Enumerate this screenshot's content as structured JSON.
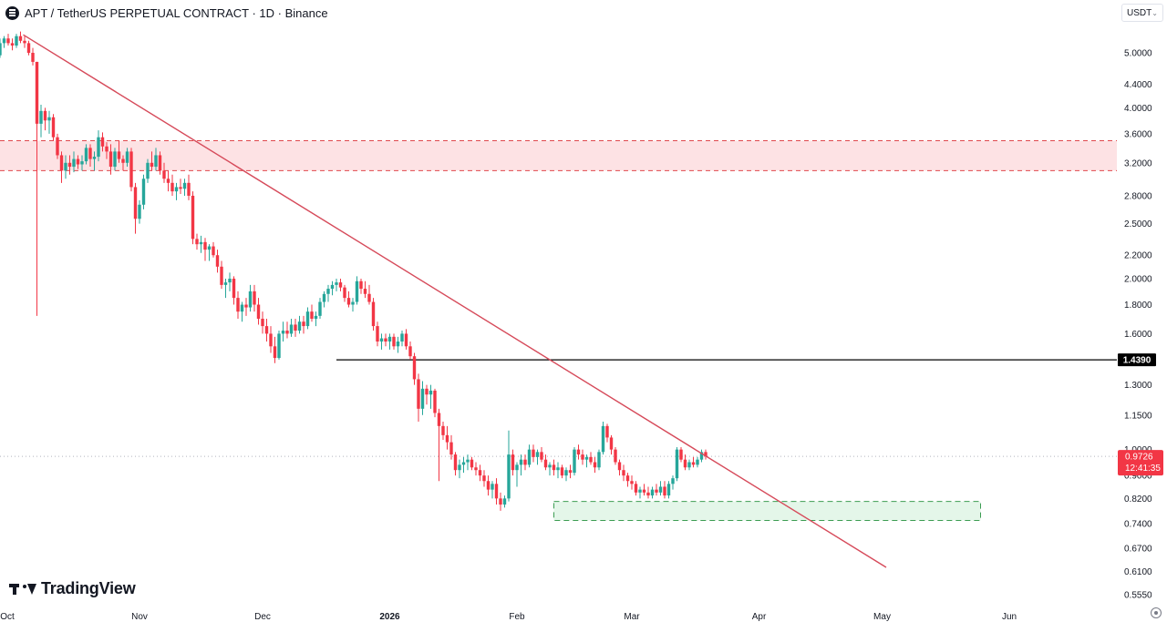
{
  "header": {
    "symbol_title": "APT / TetherUS PERPETUAL CONTRACT · 1D · Binance"
  },
  "currency_selector": {
    "value": "USDT",
    "icon": "chevron-down-icon"
  },
  "branding": {
    "logo_text": "TradingView"
  },
  "colors": {
    "up": "#26a69a",
    "down": "#ef5350",
    "down_candle": "#f23645",
    "trendline": "#d64a5a",
    "resistance_zone_fill": "#fde2e4",
    "resistance_zone_border": "#e0474c",
    "support_zone_fill": "#e4f6e9",
    "support_zone_border": "#3c9c52",
    "price_tag_bg": "#f23645",
    "level_line": "#000000"
  },
  "chart_data": {
    "type": "candlestick",
    "title": "APT / TetherUS PERPETUAL CONTRACT · 1D · Binance",
    "scale": "log",
    "ylim": [
      0.54,
      5.8
    ],
    "x_axis_ticks": [
      "Oct",
      "Nov",
      "Dec",
      "2026",
      "Feb",
      "Mar",
      "Apr",
      "May",
      "Jun"
    ],
    "x_axis_ticks_bold": [
      "2026"
    ],
    "y_axis_ticks": [
      "5.0000",
      "4.4000",
      "4.0000",
      "3.6000",
      "3.2000",
      "2.8000",
      "2.5000",
      "2.2000",
      "2.0000",
      "1.8000",
      "1.6000",
      "1.3000",
      "1.1500",
      "1.0000",
      "0.9000",
      "0.8200",
      "0.7400",
      "0.6700",
      "0.6100",
      "0.5550"
    ],
    "current_price": {
      "label": "0.9726",
      "countdown": "12:41:35"
    },
    "horizontal_level": {
      "label": "1.4390",
      "value": 1.439,
      "from_date": "2025-12-19"
    },
    "resistance_zone": {
      "top": 3.5,
      "bottom": 3.1
    },
    "support_zone": {
      "top": 0.81,
      "bottom": 0.75,
      "from_date": "2026-02-10",
      "to_date": "2026-05-25"
    },
    "trendline": {
      "start": {
        "date": "2025-10-01",
        "price": 5.38
      },
      "end": {
        "date": "2026-05-02",
        "price": 0.62
      }
    },
    "grid": false,
    "candles": {
      "start_date": "2025-09-25",
      "interval": "1D",
      "ohlc": [
        [
          4.25,
          4.38,
          4.2,
          4.3
        ],
        [
          4.3,
          4.78,
          4.25,
          4.7
        ],
        [
          4.7,
          5.0,
          4.6,
          4.95
        ],
        [
          4.95,
          5.3,
          4.9,
          5.2
        ],
        [
          5.2,
          5.35,
          5.1,
          5.3
        ],
        [
          5.3,
          5.4,
          5.15,
          5.2
        ],
        [
          5.2,
          5.3,
          5.05,
          5.15
        ],
        [
          5.15,
          5.4,
          5.1,
          5.35
        ],
        [
          5.35,
          5.45,
          5.2,
          5.25
        ],
        [
          5.25,
          5.35,
          5.1,
          5.2
        ],
        [
          5.2,
          5.25,
          4.95,
          5.0
        ],
        [
          5.0,
          5.1,
          4.75,
          4.82
        ],
        [
          4.82,
          4.82,
          1.72,
          3.75
        ],
        [
          3.75,
          4.05,
          3.55,
          3.95
        ],
        [
          3.95,
          4.0,
          3.65,
          3.8
        ],
        [
          3.8,
          3.95,
          3.6,
          3.85
        ],
        [
          3.85,
          3.9,
          3.5,
          3.55
        ],
        [
          3.55,
          3.6,
          3.25,
          3.3
        ],
        [
          3.3,
          3.35,
          2.95,
          3.1
        ],
        [
          3.1,
          3.3,
          3.0,
          3.2
        ],
        [
          3.2,
          3.3,
          3.05,
          3.15
        ],
        [
          3.15,
          3.35,
          3.08,
          3.25
        ],
        [
          3.25,
          3.3,
          3.12,
          3.18
        ],
        [
          3.18,
          3.3,
          3.1,
          3.22
        ],
        [
          3.22,
          3.45,
          3.18,
          3.4
        ],
        [
          3.4,
          3.45,
          3.15,
          3.25
        ],
        [
          3.25,
          3.35,
          3.1,
          3.28
        ],
        [
          3.28,
          3.65,
          3.22,
          3.55
        ],
        [
          3.55,
          3.62,
          3.35,
          3.42
        ],
        [
          3.42,
          3.48,
          3.25,
          3.35
        ],
        [
          3.35,
          3.45,
          3.05,
          3.15
        ],
        [
          3.15,
          3.4,
          3.1,
          3.35
        ],
        [
          3.35,
          3.5,
          3.2,
          3.25
        ],
        [
          3.25,
          3.3,
          3.1,
          3.2
        ],
        [
          3.2,
          3.4,
          3.15,
          3.35
        ],
        [
          3.35,
          3.4,
          2.85,
          2.9
        ],
        [
          2.9,
          2.95,
          2.4,
          2.55
        ],
        [
          2.55,
          2.75,
          2.5,
          2.7
        ],
        [
          2.7,
          3.05,
          2.65,
          3.0
        ],
        [
          3.0,
          3.25,
          2.95,
          3.2
        ],
        [
          3.2,
          3.35,
          3.1,
          3.15
        ],
        [
          3.15,
          3.4,
          3.1,
          3.3
        ],
        [
          3.3,
          3.35,
          3.05,
          3.1
        ],
        [
          3.1,
          3.2,
          2.95,
          3.0
        ],
        [
          3.0,
          3.1,
          2.85,
          2.95
        ],
        [
          2.95,
          3.05,
          2.8,
          2.85
        ],
        [
          2.85,
          2.95,
          2.75,
          2.9
        ],
        [
          2.9,
          3.0,
          2.82,
          2.88
        ],
        [
          2.88,
          3.0,
          2.8,
          2.95
        ],
        [
          2.95,
          3.05,
          2.75,
          2.8
        ],
        [
          2.8,
          2.85,
          2.3,
          2.35
        ],
        [
          2.35,
          2.4,
          2.25,
          2.3
        ],
        [
          2.3,
          2.38,
          2.22,
          2.32
        ],
        [
          2.32,
          2.36,
          2.15,
          2.25
        ],
        [
          2.25,
          2.3,
          2.15,
          2.28
        ],
        [
          2.28,
          2.32,
          2.18,
          2.2
        ],
        [
          2.2,
          2.25,
          2.05,
          2.1
        ],
        [
          2.1,
          2.15,
          1.92,
          1.95
        ],
        [
          1.95,
          2.0,
          1.85,
          1.97
        ],
        [
          1.97,
          2.05,
          1.9,
          2.0
        ],
        [
          2.0,
          2.02,
          1.8,
          1.85
        ],
        [
          1.85,
          1.9,
          1.7,
          1.75
        ],
        [
          1.75,
          1.82,
          1.68,
          1.8
        ],
        [
          1.8,
          1.85,
          1.72,
          1.78
        ],
        [
          1.78,
          1.95,
          1.75,
          1.9
        ],
        [
          1.9,
          1.95,
          1.75,
          1.8
        ],
        [
          1.8,
          1.85,
          1.66,
          1.7
        ],
        [
          1.7,
          1.75,
          1.6,
          1.65
        ],
        [
          1.65,
          1.7,
          1.55,
          1.6
        ],
        [
          1.6,
          1.65,
          1.48,
          1.52
        ],
        [
          1.52,
          1.58,
          1.42,
          1.45
        ],
        [
          1.45,
          1.62,
          1.44,
          1.6
        ],
        [
          1.6,
          1.68,
          1.55,
          1.62
        ],
        [
          1.62,
          1.68,
          1.57,
          1.6
        ],
        [
          1.6,
          1.7,
          1.58,
          1.66
        ],
        [
          1.66,
          1.7,
          1.58,
          1.62
        ],
        [
          1.62,
          1.72,
          1.6,
          1.68
        ],
        [
          1.68,
          1.72,
          1.6,
          1.65
        ],
        [
          1.65,
          1.78,
          1.63,
          1.75
        ],
        [
          1.75,
          1.8,
          1.68,
          1.7
        ],
        [
          1.7,
          1.75,
          1.65,
          1.72
        ],
        [
          1.72,
          1.85,
          1.7,
          1.82
        ],
        [
          1.82,
          1.9,
          1.78,
          1.88
        ],
        [
          1.88,
          1.95,
          1.82,
          1.92
        ],
        [
          1.92,
          1.98,
          1.87,
          1.95
        ],
        [
          1.95,
          2.0,
          1.9,
          1.97
        ],
        [
          1.97,
          2.0,
          1.9,
          1.93
        ],
        [
          1.93,
          1.95,
          1.82,
          1.85
        ],
        [
          1.85,
          1.9,
          1.78,
          1.8
        ],
        [
          1.8,
          1.85,
          1.75,
          1.82
        ],
        [
          1.82,
          2.02,
          1.8,
          1.98
        ],
        [
          1.98,
          2.0,
          1.88,
          1.92
        ],
        [
          1.92,
          1.98,
          1.85,
          1.88
        ],
        [
          1.88,
          1.95,
          1.8,
          1.82
        ],
        [
          1.82,
          1.85,
          1.62,
          1.65
        ],
        [
          1.65,
          1.68,
          1.52,
          1.55
        ],
        [
          1.55,
          1.6,
          1.5,
          1.57
        ],
        [
          1.57,
          1.6,
          1.52,
          1.55
        ],
        [
          1.55,
          1.6,
          1.5,
          1.58
        ],
        [
          1.58,
          1.6,
          1.5,
          1.52
        ],
        [
          1.52,
          1.58,
          1.48,
          1.55
        ],
        [
          1.55,
          1.62,
          1.52,
          1.6
        ],
        [
          1.6,
          1.63,
          1.5,
          1.52
        ],
        [
          1.52,
          1.55,
          1.44,
          1.46
        ],
        [
          1.46,
          1.48,
          1.3,
          1.33
        ],
        [
          1.33,
          1.36,
          1.12,
          1.18
        ],
        [
          1.18,
          1.32,
          1.15,
          1.28
        ],
        [
          1.28,
          1.3,
          1.2,
          1.25
        ],
        [
          1.25,
          1.3,
          1.18,
          1.27
        ],
        [
          1.27,
          1.28,
          1.14,
          1.16
        ],
        [
          1.16,
          1.18,
          0.88,
          1.1
        ],
        [
          1.1,
          1.12,
          1.04,
          1.06
        ],
        [
          1.06,
          1.1,
          1.0,
          1.03
        ],
        [
          1.03,
          1.06,
          0.96,
          0.98
        ],
        [
          0.98,
          0.99,
          0.9,
          0.92
        ],
        [
          0.92,
          0.96,
          0.89,
          0.94
        ],
        [
          0.94,
          0.97,
          0.91,
          0.95
        ],
        [
          0.95,
          0.98,
          0.92,
          0.96
        ],
        [
          0.96,
          0.97,
          0.92,
          0.93
        ],
        [
          0.93,
          0.95,
          0.9,
          0.92
        ],
        [
          0.92,
          0.94,
          0.88,
          0.9
        ],
        [
          0.9,
          0.92,
          0.86,
          0.88
        ],
        [
          0.88,
          0.9,
          0.83,
          0.85
        ],
        [
          0.85,
          0.88,
          0.82,
          0.87
        ],
        [
          0.87,
          0.89,
          0.8,
          0.82
        ],
        [
          0.82,
          0.84,
          0.78,
          0.8
        ],
        [
          0.8,
          0.83,
          0.79,
          0.82
        ],
        [
          0.82,
          1.08,
          0.81,
          0.98
        ],
        [
          0.98,
          1.0,
          0.9,
          0.92
        ],
        [
          0.92,
          0.95,
          0.86,
          0.94
        ],
        [
          0.94,
          0.98,
          0.9,
          0.96
        ],
        [
          0.96,
          0.98,
          0.92,
          0.94
        ],
        [
          0.94,
          1.02,
          0.93,
          1.0
        ],
        [
          1.0,
          1.02,
          0.95,
          0.97
        ],
        [
          0.97,
          1.0,
          0.94,
          0.99
        ],
        [
          0.99,
          1.01,
          0.95,
          0.96
        ],
        [
          0.96,
          0.98,
          0.92,
          0.93
        ],
        [
          0.93,
          0.95,
          0.9,
          0.94
        ],
        [
          0.94,
          0.96,
          0.9,
          0.92
        ],
        [
          0.92,
          0.95,
          0.89,
          0.93
        ],
        [
          0.93,
          0.94,
          0.89,
          0.9
        ],
        [
          0.9,
          0.93,
          0.88,
          0.92
        ],
        [
          0.92,
          0.94,
          0.89,
          0.91
        ],
        [
          0.91,
          1.01,
          0.9,
          1.0
        ],
        [
          1.0,
          1.02,
          0.96,
          0.98
        ],
        [
          0.98,
          1.0,
          0.94,
          0.96
        ],
        [
          0.96,
          0.98,
          0.93,
          0.97
        ],
        [
          0.97,
          0.99,
          0.94,
          0.95
        ],
        [
          0.95,
          0.97,
          0.91,
          0.93
        ],
        [
          0.93,
          1.0,
          0.92,
          0.99
        ],
        [
          0.99,
          1.12,
          0.98,
          1.1
        ],
        [
          1.1,
          1.11,
          1.03,
          1.05
        ],
        [
          1.05,
          1.06,
          0.98,
          1.0
        ],
        [
          1.0,
          1.01,
          0.94,
          0.95
        ],
        [
          0.95,
          0.96,
          0.9,
          0.92
        ],
        [
          0.92,
          0.94,
          0.88,
          0.9
        ],
        [
          0.9,
          0.91,
          0.86,
          0.88
        ],
        [
          0.88,
          0.9,
          0.85,
          0.87
        ],
        [
          0.87,
          0.88,
          0.83,
          0.84
        ],
        [
          0.84,
          0.86,
          0.82,
          0.85
        ],
        [
          0.85,
          0.87,
          0.83,
          0.84
        ],
        [
          0.84,
          0.86,
          0.82,
          0.83
        ],
        [
          0.83,
          0.86,
          0.82,
          0.85
        ],
        [
          0.85,
          0.87,
          0.83,
          0.84
        ],
        [
          0.84,
          0.88,
          0.83,
          0.86
        ],
        [
          0.86,
          0.88,
          0.82,
          0.83
        ],
        [
          0.83,
          0.88,
          0.82,
          0.87
        ],
        [
          0.87,
          0.9,
          0.85,
          0.89
        ],
        [
          0.89,
          1.01,
          0.88,
          1.0
        ],
        [
          1.0,
          1.01,
          0.95,
          0.96
        ],
        [
          0.96,
          0.98,
          0.92,
          0.93
        ],
        [
          0.93,
          0.96,
          0.92,
          0.95
        ],
        [
          0.95,
          0.97,
          0.93,
          0.94
        ],
        [
          0.94,
          0.97,
          0.93,
          0.96
        ],
        [
          0.96,
          1.0,
          0.95,
          0.99
        ],
        [
          0.99,
          1.0,
          0.96,
          0.9726
        ]
      ]
    }
  }
}
